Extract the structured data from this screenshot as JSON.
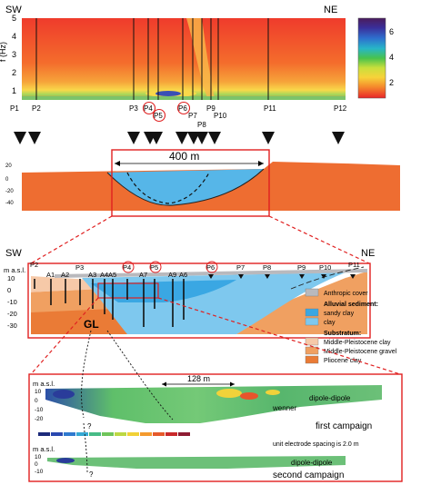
{
  "panel_hv": {
    "direction_left": "SW",
    "direction_right": "NE",
    "yaxis_label": "f (Hz)",
    "yaxis_ticks": [
      "5",
      "4",
      "3",
      "2",
      "1"
    ],
    "colorbar_ticks": [
      "6",
      "4",
      "2"
    ],
    "station_labels": [
      "P1",
      "P2",
      "P3",
      "P4",
      "P5",
      "P6",
      "P7",
      "P8",
      "P9",
      "P10",
      "P11",
      "P12"
    ]
  },
  "panel_section": {
    "depth_ticks": [
      "20",
      "0",
      "-20",
      "-40"
    ],
    "distance_label": "400 m"
  },
  "panel_detail": {
    "direction_left": "SW",
    "direction_right": "NE",
    "yaxis_label": "m a.s.l.",
    "yaxis_ticks": [
      "10",
      "0",
      "-10",
      "-20",
      "-30"
    ],
    "well_labels": [
      "P2",
      "A1",
      "A2",
      "P3",
      "A3",
      "A4",
      "A5",
      "P4",
      "A7",
      "P5",
      "A9",
      "A6",
      "P6",
      "P7",
      "P8",
      "P9",
      "P10",
      "P11"
    ],
    "gl_label": "GL",
    "legend": {
      "anthropic": "Anthropic cover",
      "alluvial_title": "Alluvial sediment:",
      "sandy_clay": "sandy clay",
      "clay": "clay",
      "substratum_title": "Substratum:",
      "middle_pleistocene_clay": "Middle-Pleistocene clay",
      "middle_pleistocene_gravel": "Middle-Pleistocene gravel",
      "pliocene_clay": "Pliocene clay"
    },
    "colors": {
      "anthropic": "#b9b9bd",
      "sandy_clay": "#3aa7e3",
      "clay": "#7ec8ee",
      "middle_pleistocene_clay": "#f6c9a8",
      "middle_pleistocene_gravel": "#f0a061",
      "pliocene_clay": "#ea7b36"
    }
  },
  "panel_ert": {
    "yaxis_label": "m a.s.l.",
    "top_ticks": [
      "10",
      "0",
      "-10",
      "-20"
    ],
    "bottom_ticks": [
      "10",
      "0",
      "-10"
    ],
    "distance_label": "128 m",
    "dipole_label_top": "dipole-dipole",
    "wenner_label": "wenner",
    "campaign1_label": "first campaign",
    "spacing_label": "unit electrode spacing is 2.0 m",
    "dipole_label_bottom": "dipole-dipole",
    "campaign2_label": "second campaign",
    "question_mark": "?"
  }
}
